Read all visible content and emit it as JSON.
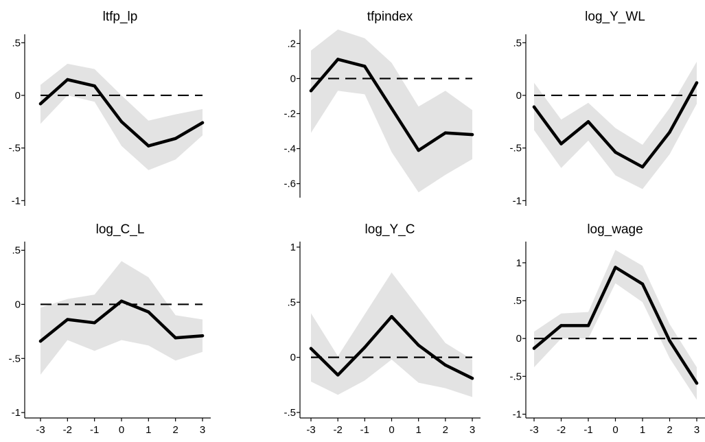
{
  "chart_data": [
    {
      "type": "line",
      "title": "ltfp_lp",
      "x": [
        -3,
        -2,
        -1,
        0,
        1,
        2,
        3
      ],
      "xticks": [
        "-3",
        "-2",
        "-1",
        "0",
        "1",
        "2",
        "3"
      ],
      "x_tick_labels_shown": false,
      "ylim": [
        -1.05,
        0.58
      ],
      "yticks": [
        0.5,
        0,
        -0.5,
        -1
      ],
      "ytick_labels": [
        ".5",
        "0",
        "-.5",
        "-1"
      ],
      "series": [
        {
          "values": [
            -0.08,
            0.15,
            0.09,
            -0.25,
            -0.48,
            -0.41,
            -0.26
          ]
        },
        {
          "role": "ci_upper",
          "values": [
            0.1,
            0.3,
            0.25,
            0.0,
            -0.24,
            -0.18,
            -0.13
          ]
        },
        {
          "role": "ci_lower",
          "values": [
            -0.27,
            0.0,
            -0.06,
            -0.48,
            -0.71,
            -0.61,
            -0.38
          ]
        }
      ],
      "reference_line": 0
    },
    {
      "type": "line",
      "title": "tfpindex",
      "x": [
        -3,
        -2,
        -1,
        0,
        1,
        2,
        3
      ],
      "xticks": [
        "-3",
        "-2",
        "-1",
        "0",
        "1",
        "2",
        "3"
      ],
      "x_tick_labels_shown": false,
      "ylim": [
        -0.68,
        0.28
      ],
      "yticks": [
        0.2,
        0,
        -0.2,
        -0.4,
        -0.6
      ],
      "ytick_labels": [
        ".2",
        "0",
        "-.2",
        "-.4",
        "-.6"
      ],
      "series": [
        {
          "values": [
            -0.07,
            0.11,
            0.07,
            -0.17,
            -0.41,
            -0.31,
            -0.32
          ]
        },
        {
          "role": "ci_upper",
          "values": [
            0.16,
            0.28,
            0.23,
            0.09,
            -0.16,
            -0.07,
            -0.18
          ]
        },
        {
          "role": "ci_lower",
          "values": [
            -0.31,
            -0.07,
            -0.09,
            -0.42,
            -0.65,
            -0.55,
            -0.46
          ]
        }
      ],
      "reference_line": 0
    },
    {
      "type": "line",
      "title": "log_Y_WL",
      "x": [
        -3,
        -2,
        -1,
        0,
        1,
        2,
        3
      ],
      "xticks": [
        "-3",
        "-2",
        "-1",
        "0",
        "1",
        "2",
        "3"
      ],
      "x_tick_labels_shown": false,
      "ylim": [
        -1.05,
        0.58
      ],
      "yticks": [
        0.5,
        0,
        -0.5,
        -1
      ],
      "ytick_labels": [
        ".5",
        "0",
        "-.5",
        "-1"
      ],
      "series": [
        {
          "values": [
            -0.11,
            -0.46,
            -0.25,
            -0.54,
            -0.68,
            -0.35,
            0.12
          ]
        },
        {
          "role": "ci_upper",
          "values": [
            0.12,
            -0.23,
            -0.07,
            -0.31,
            -0.47,
            -0.12,
            0.32
          ]
        },
        {
          "role": "ci_lower",
          "values": [
            -0.33,
            -0.69,
            -0.43,
            -0.76,
            -0.89,
            -0.56,
            -0.08
          ]
        }
      ],
      "reference_line": 0
    },
    {
      "type": "line",
      "title": "log_C_L",
      "x": [
        -3,
        -2,
        -1,
        0,
        1,
        2,
        3
      ],
      "xticks": [
        "-3",
        "-2",
        "-1",
        "0",
        "1",
        "2",
        "3"
      ],
      "x_tick_labels_shown": true,
      "ylim": [
        -1.05,
        0.58
      ],
      "yticks": [
        0.5,
        0,
        -0.5,
        -1
      ],
      "ytick_labels": [
        ".5",
        "0",
        "-.5",
        "-1"
      ],
      "series": [
        {
          "values": [
            -0.34,
            -0.14,
            -0.17,
            0.03,
            -0.07,
            -0.31,
            -0.29
          ]
        },
        {
          "role": "ci_upper",
          "values": [
            -0.03,
            0.05,
            0.09,
            0.4,
            0.25,
            -0.1,
            -0.14
          ]
        },
        {
          "role": "ci_lower",
          "values": [
            -0.65,
            -0.33,
            -0.43,
            -0.33,
            -0.38,
            -0.52,
            -0.44
          ]
        }
      ],
      "reference_line": 0
    },
    {
      "type": "line",
      "title": "log_Y_C",
      "x": [
        -3,
        -2,
        -1,
        0,
        1,
        2,
        3
      ],
      "xticks": [
        "-3",
        "-2",
        "-1",
        "0",
        "1",
        "2",
        "3"
      ],
      "x_tick_labels_shown": true,
      "ylim": [
        -0.55,
        1.05
      ],
      "yticks": [
        1,
        0.5,
        0,
        -0.5
      ],
      "ytick_labels": [
        "1",
        ".5",
        "0",
        "-.5"
      ],
      "series": [
        {
          "values": [
            0.08,
            -0.16,
            0.09,
            0.37,
            0.11,
            -0.07,
            -0.19
          ]
        },
        {
          "role": "ci_upper",
          "values": [
            0.4,
            0.01,
            0.39,
            0.77,
            0.45,
            0.13,
            -0.02
          ]
        },
        {
          "role": "ci_lower",
          "values": [
            -0.22,
            -0.34,
            -0.21,
            -0.02,
            -0.23,
            -0.28,
            -0.36
          ]
        }
      ],
      "reference_line": 0
    },
    {
      "type": "line",
      "title": "log_wage",
      "x": [
        -3,
        -2,
        -1,
        0,
        1,
        2,
        3
      ],
      "xticks": [
        "-3",
        "-2",
        "-1",
        "0",
        "1",
        "2",
        "3"
      ],
      "x_tick_labels_shown": true,
      "ylim": [
        -1.05,
        1.28
      ],
      "yticks": [
        1,
        0.5,
        0,
        -0.5,
        -1
      ],
      "ytick_labels": [
        "1",
        ".5",
        "0",
        "-.5",
        "-1"
      ],
      "series": [
        {
          "values": [
            -0.13,
            0.17,
            0.17,
            0.94,
            0.72,
            -0.03,
            -0.59
          ]
        },
        {
          "role": "ci_upper",
          "values": [
            0.09,
            0.33,
            0.35,
            1.17,
            0.96,
            0.19,
            -0.38
          ]
        },
        {
          "role": "ci_lower",
          "values": [
            -0.38,
            0.0,
            0.0,
            0.73,
            0.48,
            -0.26,
            -0.81
          ]
        }
      ],
      "reference_line": 0
    }
  ]
}
